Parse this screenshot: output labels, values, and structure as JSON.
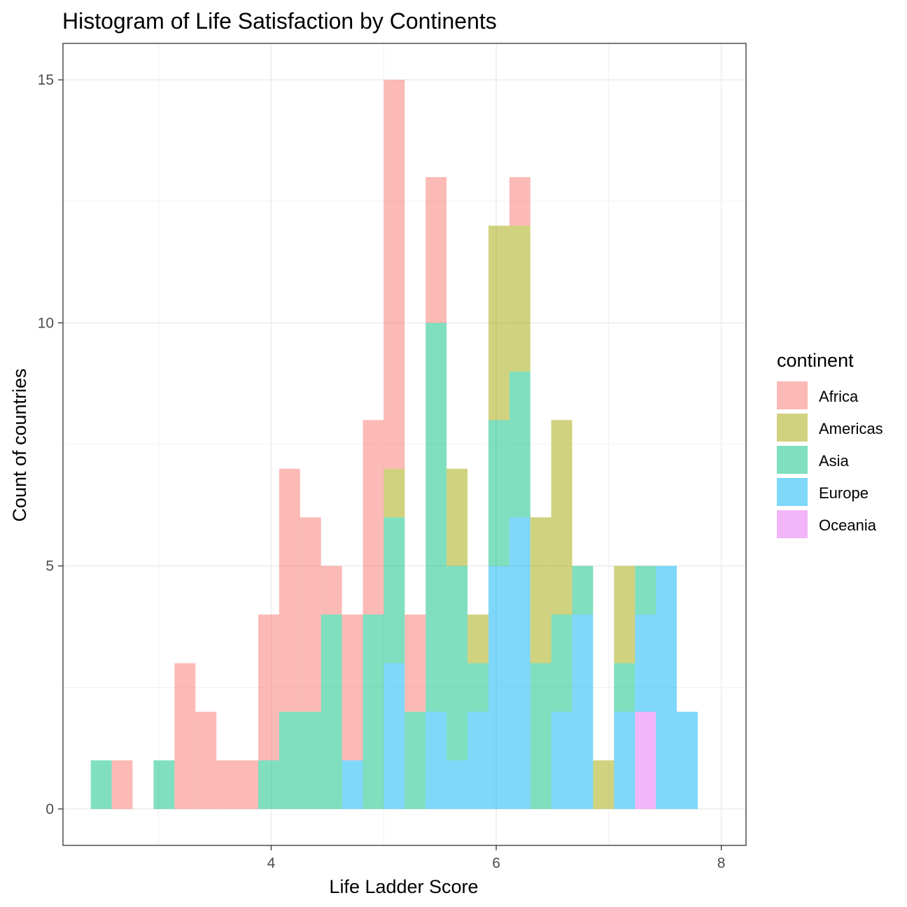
{
  "chart_data": {
    "type": "bar",
    "subtype": "stacked-histogram",
    "title": "Histogram of Life Satisfaction by Continents",
    "xlabel": "Life Ladder Score",
    "ylabel": "Count of countries",
    "xlim": [
      2.15,
      8.22
    ],
    "ylim": [
      -0.75,
      15.75
    ],
    "xticks": [
      4,
      6,
      8
    ],
    "yticks": [
      0,
      5,
      10,
      15
    ],
    "grid": true,
    "legend_title": "continent",
    "legend_position": "right",
    "bin_width": 0.186,
    "bins": [
      2.49,
      2.676,
      2.862,
      3.048,
      3.234,
      3.42,
      3.606,
      3.792,
      3.978,
      4.164,
      4.35,
      4.536,
      4.722,
      4.908,
      5.094,
      5.28,
      5.466,
      5.652,
      5.838,
      6.024,
      6.21,
      6.396,
      6.582,
      6.768,
      6.954,
      7.14,
      7.326,
      7.512,
      7.698
    ],
    "series": [
      {
        "name": "Africa",
        "color": "#F8766D",
        "values": [
          0,
          1,
          0,
          0,
          3,
          2,
          1,
          1,
          3,
          5,
          4,
          1,
          3,
          4,
          8,
          2,
          3,
          0,
          0,
          0,
          1,
          0,
          0,
          0,
          0,
          0,
          0,
          0,
          0
        ]
      },
      {
        "name": "Americas",
        "color": "#A3A500",
        "values": [
          0,
          0,
          0,
          0,
          0,
          0,
          0,
          0,
          0,
          0,
          0,
          0,
          0,
          0,
          1,
          0,
          0,
          2,
          1,
          4,
          3,
          3,
          4,
          0,
          1,
          2,
          0,
          0,
          0
        ]
      },
      {
        "name": "Asia",
        "color": "#00BF7D",
        "values": [
          1,
          0,
          0,
          1,
          0,
          0,
          0,
          0,
          1,
          2,
          2,
          4,
          0,
          4,
          3,
          2,
          8,
          4,
          1,
          3,
          3,
          3,
          2,
          1,
          0,
          1,
          1,
          0,
          0
        ]
      },
      {
        "name": "Europe",
        "color": "#00B0F6",
        "values": [
          0,
          0,
          0,
          0,
          0,
          0,
          0,
          0,
          0,
          0,
          0,
          0,
          1,
          0,
          3,
          0,
          2,
          1,
          2,
          5,
          6,
          0,
          2,
          4,
          0,
          2,
          2,
          5,
          2
        ]
      },
      {
        "name": "Oceania",
        "color": "#E76BF3",
        "values": [
          0,
          0,
          0,
          0,
          0,
          0,
          0,
          0,
          0,
          0,
          0,
          0,
          0,
          0,
          0,
          0,
          0,
          0,
          0,
          0,
          0,
          0,
          0,
          0,
          0,
          0,
          2,
          0,
          0
        ]
      }
    ]
  }
}
